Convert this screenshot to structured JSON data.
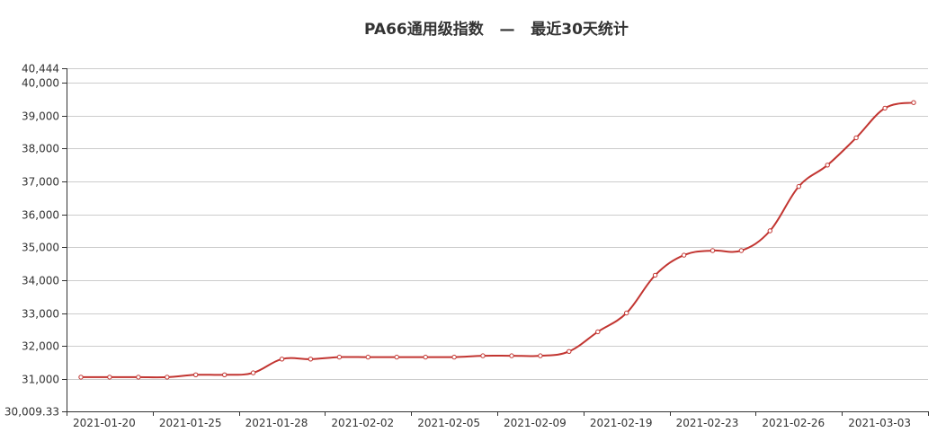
{
  "chart_data": {
    "type": "line",
    "title": "PA66通用级指数   —   最近30天统计",
    "xlabel": "",
    "ylabel": "",
    "ylim": [
      30009.33,
      40444
    ],
    "y_ticks": [
      {
        "value": 40444,
        "label": "40,444"
      },
      {
        "value": 40000,
        "label": "40,000"
      },
      {
        "value": 39000,
        "label": "39,000"
      },
      {
        "value": 38000,
        "label": "38,000"
      },
      {
        "value": 37000,
        "label": "37,000"
      },
      {
        "value": 36000,
        "label": "36,000"
      },
      {
        "value": 35000,
        "label": "35,000"
      },
      {
        "value": 34000,
        "label": "34,000"
      },
      {
        "value": 33000,
        "label": "33,000"
      },
      {
        "value": 32000,
        "label": "32,000"
      },
      {
        "value": 31000,
        "label": "31,000"
      },
      {
        "value": 30009.33,
        "label": "30,009.33"
      }
    ],
    "x_tick_labels": [
      "2021-01-20",
      "2021-01-25",
      "2021-01-28",
      "2021-02-02",
      "2021-02-05",
      "2021-02-09",
      "2021-02-19",
      "2021-02-23",
      "2021-02-26",
      "2021-03-03"
    ],
    "grid": true,
    "series": [
      {
        "color": "#c23531",
        "values": [
          31050,
          31050,
          31050,
          31050,
          31120,
          31120,
          31180,
          31600,
          31600,
          31660,
          31660,
          31660,
          31660,
          31660,
          31700,
          31700,
          31700,
          31830,
          32430,
          33000,
          34150,
          34760,
          34900,
          34900,
          35500,
          36850,
          37500,
          38330,
          39230,
          39400
        ]
      }
    ]
  }
}
